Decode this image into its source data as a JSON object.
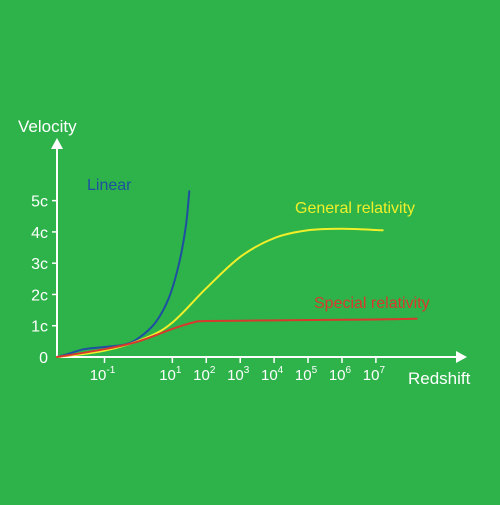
{
  "chart_data": {
    "type": "line",
    "ylabel": "Velocity",
    "xlabel": "Redshift",
    "y_ticks": [
      {
        "label": "0",
        "value": 0
      },
      {
        "label": "1c",
        "value": 1
      },
      {
        "label": "2c",
        "value": 2
      },
      {
        "label": "3c",
        "value": 3
      },
      {
        "label": "4c",
        "value": 4
      },
      {
        "label": "5c",
        "value": 5
      }
    ],
    "x_ticks": [
      {
        "base": "10",
        "exp": "-1",
        "value": -1
      },
      {
        "base": "10",
        "exp": "1",
        "value": 1
      },
      {
        "base": "10",
        "exp": "2",
        "value": 2
      },
      {
        "base": "10",
        "exp": "3",
        "value": 3
      },
      {
        "base": "10",
        "exp": "4",
        "value": 4
      },
      {
        "base": "10",
        "exp": "5",
        "value": 5
      },
      {
        "base": "10",
        "exp": "6",
        "value": 6
      },
      {
        "base": "10",
        "exp": "7",
        "value": 7
      }
    ],
    "x_scale": "log",
    "series": [
      {
        "name": "Linear",
        "color": "#1f4fa0",
        "points": [
          [
            -2.4,
            0
          ],
          [
            -2,
            0.12
          ],
          [
            -1.6,
            0.25
          ],
          [
            -1,
            0.32
          ],
          [
            -0.4,
            0.4
          ],
          [
            0,
            0.6
          ],
          [
            0.5,
            1.1
          ],
          [
            0.9,
            1.9
          ],
          [
            1.2,
            3.0
          ],
          [
            1.4,
            4.2
          ],
          [
            1.5,
            5.3
          ]
        ]
      },
      {
        "name": "General relativity",
        "color": "#f0ef2a",
        "points": [
          [
            -2.4,
            0
          ],
          [
            -1,
            0.2
          ],
          [
            0.2,
            0.6
          ],
          [
            1,
            1.1
          ],
          [
            2,
            2.2
          ],
          [
            3,
            3.2
          ],
          [
            4,
            3.8
          ],
          [
            5,
            4.05
          ],
          [
            6,
            4.1
          ],
          [
            7.2,
            4.05
          ]
        ]
      },
      {
        "name": "Special relativity",
        "color": "#d73a2c",
        "points": [
          [
            -2.4,
            0
          ],
          [
            -1,
            0.25
          ],
          [
            0,
            0.5
          ],
          [
            1,
            0.9
          ],
          [
            1.6,
            1.1
          ],
          [
            2,
            1.15
          ],
          [
            4,
            1.17
          ],
          [
            6,
            1.19
          ],
          [
            7,
            1.2
          ],
          [
            8.2,
            1.22
          ]
        ]
      }
    ],
    "xlim": [
      -2.4,
      8.3
    ],
    "ylim": [
      0,
      5.5
    ],
    "grid": false
  }
}
